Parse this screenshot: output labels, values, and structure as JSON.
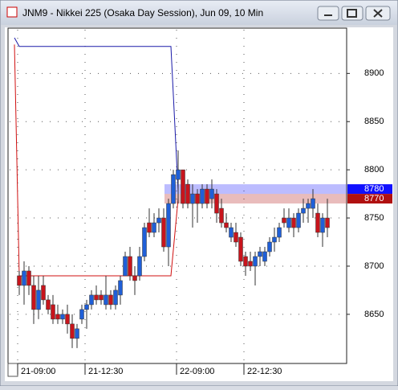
{
  "chart_data": {
    "type": "candlestick",
    "title": "JNM9 - Nikkei 225 (Osaka Day Session), Jun 09, 10 Min",
    "categories": [
      "21-09:00",
      null,
      null,
      null,
      null,
      null,
      null,
      null,
      null,
      null,
      null,
      null,
      null,
      null,
      "21-12:30",
      null,
      null,
      null,
      null,
      null,
      null,
      null,
      null,
      null,
      null,
      null,
      null,
      null,
      null,
      null,
      null,
      null,
      null,
      "22-09:00",
      null,
      null,
      null,
      null,
      null,
      null,
      null,
      null,
      null,
      null,
      null,
      null,
      null,
      "22-12:30",
      null,
      null,
      null,
      null,
      null,
      null,
      null,
      null,
      null,
      null,
      null,
      null,
      null,
      null,
      null,
      null,
      null
    ],
    "open": [
      8690,
      8680,
      8695,
      8680,
      8655,
      8680,
      8665,
      8660,
      8650,
      8645,
      8650,
      8640,
      8625,
      8645,
      8655,
      8660,
      8670,
      8670,
      8660,
      8670,
      8660,
      8670,
      8690,
      8710,
      8690,
      8690,
      8710,
      8745,
      8735,
      8745,
      8750,
      8720,
      8765,
      8790,
      8800,
      8785,
      8765,
      8775,
      8765,
      8780,
      8770,
      8775,
      8760,
      8745,
      8730,
      8735,
      8730,
      8710,
      8705,
      8700,
      8710,
      8705,
      8715,
      8725,
      8730,
      8750,
      8740,
      8750,
      8740,
      8755,
      8760,
      8760,
      8755,
      8735,
      8750
    ],
    "high": [
      8695,
      8705,
      8700,
      8690,
      8690,
      8690,
      8670,
      8670,
      8660,
      8655,
      8660,
      8650,
      8640,
      8660,
      8665,
      8675,
      8680,
      8675,
      8690,
      8675,
      8680,
      8690,
      8715,
      8720,
      8700,
      8720,
      8745,
      8760,
      8755,
      8760,
      8760,
      8770,
      8800,
      8820,
      8800,
      8790,
      8785,
      8780,
      8785,
      8785,
      8790,
      8780,
      8770,
      8755,
      8745,
      8745,
      8735,
      8715,
      8715,
      8715,
      8720,
      8720,
      8730,
      8740,
      8745,
      8760,
      8760,
      8755,
      8760,
      8770,
      8770,
      8780,
      8765,
      8755,
      8770
    ],
    "low": [
      8670,
      8660,
      8670,
      8640,
      8645,
      8660,
      8650,
      8640,
      8640,
      8640,
      8630,
      8615,
      8615,
      8640,
      8635,
      8655,
      8660,
      8660,
      8655,
      8655,
      8655,
      8660,
      8690,
      8685,
      8670,
      8685,
      8705,
      8730,
      8730,
      8735,
      8715,
      8700,
      8760,
      8765,
      8760,
      8760,
      8740,
      8745,
      8760,
      8760,
      8760,
      8745,
      8740,
      8735,
      8725,
      8720,
      8700,
      8690,
      8695,
      8680,
      8700,
      8700,
      8710,
      8715,
      8725,
      8740,
      8735,
      8730,
      8735,
      8745,
      8745,
      8750,
      8730,
      8720,
      8730
    ],
    "close": [
      8680,
      8695,
      8680,
      8655,
      8675,
      8665,
      8655,
      8645,
      8645,
      8650,
      8640,
      8625,
      8635,
      8655,
      8660,
      8670,
      8665,
      8665,
      8670,
      8660,
      8675,
      8685,
      8710,
      8690,
      8685,
      8710,
      8740,
      8735,
      8745,
      8750,
      8720,
      8765,
      8795,
      8800,
      8765,
      8765,
      8775,
      8765,
      8780,
      8765,
      8780,
      8755,
      8745,
      8740,
      8740,
      8725,
      8705,
      8700,
      8700,
      8710,
      8715,
      8715,
      8725,
      8730,
      8740,
      8745,
      8750,
      8740,
      8755,
      8760,
      8765,
      8770,
      8735,
      8750,
      8740
    ],
    "up_color": "#1f5fd8",
    "down_color": "#c8141c",
    "lines": [
      {
        "color": "#1a1aa8",
        "x": [
          -1,
          0,
          31.5,
          33
        ],
        "values": [
          8937,
          8928,
          8928,
          8778
        ]
      },
      {
        "color": "#d01010",
        "x": [
          -1,
          0,
          31.5,
          33
        ],
        "values": [
          8930,
          8690,
          8690,
          8770
        ]
      }
    ],
    "price_levels": [
      {
        "value": 8780,
        "color": "#1010ff"
      },
      {
        "value": 8770,
        "color": "#b01010"
      }
    ],
    "ylim": [
      8599,
      8947
    ],
    "yticks": [
      8650,
      8700,
      8750,
      8800,
      8850,
      8900
    ],
    "grid": true
  }
}
